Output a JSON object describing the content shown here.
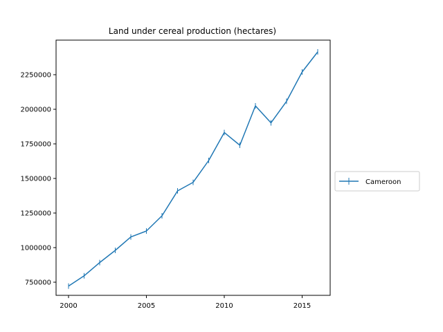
{
  "chart_data": {
    "type": "line",
    "title": "Land under cereal production (hectares)",
    "xlabel": "",
    "ylabel": "",
    "x": [
      2000,
      2001,
      2002,
      2003,
      2004,
      2005,
      2006,
      2007,
      2008,
      2009,
      2010,
      2011,
      2012,
      2013,
      2014,
      2015,
      2016
    ],
    "series": [
      {
        "name": "Cameroon",
        "color": "#1f77b4",
        "marker": "vertical-tick",
        "values": [
          722000,
          796000,
          892000,
          980000,
          1077000,
          1120000,
          1230000,
          1410000,
          1472000,
          1630000,
          1832000,
          1740000,
          2025000,
          1902000,
          2058000,
          2270000,
          2415000
        ]
      }
    ],
    "xlim": [
      1999.2,
      2016.8
    ],
    "ylim": [
      655000,
      2500000
    ],
    "xticks": [
      2000,
      2005,
      2010,
      2015
    ],
    "yticks": [
      750000,
      1000000,
      1250000,
      1500000,
      1750000,
      2000000,
      2250000
    ],
    "grid": false,
    "legend": "outside-right"
  }
}
